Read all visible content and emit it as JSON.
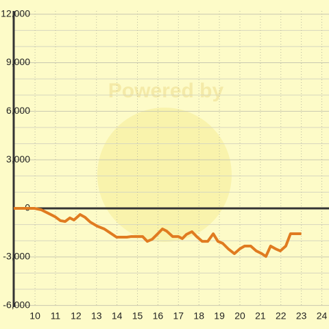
{
  "chart_data": {
    "type": "line",
    "watermark": "Powered by",
    "x": [
      8.96,
      9.97,
      10.3,
      10.64,
      10.97,
      11.24,
      11.47,
      11.7,
      11.9,
      12.2,
      12.44,
      12.7,
      13.04,
      13.38,
      13.64,
      13.98,
      14.48,
      14.7,
      15.25,
      15.48,
      15.72,
      15.99,
      16.22,
      16.42,
      16.72,
      17.0,
      17.19,
      17.39,
      17.66,
      17.89,
      18.16,
      18.43,
      18.7,
      18.93,
      19.16,
      19.43,
      19.73,
      20.0,
      20.23,
      20.53,
      20.8,
      21.07,
      21.27,
      21.5,
      21.74,
      21.97,
      22.24,
      22.47,
      23.0
    ],
    "series": [
      {
        "color": "#e07b20",
        "values": [
          0,
          0,
          -85,
          -300,
          -510,
          -760,
          -810,
          -590,
          -720,
          -380,
          -550,
          -850,
          -1100,
          -1270,
          -1490,
          -1780,
          -1780,
          -1740,
          -1740,
          -2040,
          -1910,
          -1570,
          -1270,
          -1400,
          -1740,
          -1740,
          -1870,
          -1610,
          -1440,
          -1740,
          -2040,
          -2040,
          -1570,
          -2040,
          -2160,
          -2500,
          -2800,
          -2500,
          -2330,
          -2330,
          -2630,
          -2800,
          -2970,
          -2330,
          -2500,
          -2630,
          -2330,
          -1570,
          -1570
        ]
      }
    ],
    "xlim": [
      8.96,
      24.35
    ],
    "xticks": [
      10,
      11,
      12,
      13,
      14,
      15,
      16,
      17,
      18,
      19,
      20,
      21,
      22,
      23,
      24
    ],
    "ylim": [
      -6100,
      12200
    ],
    "yticks": [
      {
        "value": -6000,
        "label": "-6,000"
      },
      {
        "value": -3000,
        "label": "-3,000"
      },
      0,
      {
        "value": 3000,
        "label": "3,000"
      },
      {
        "value": 6000,
        "label": "6,000"
      },
      {
        "value": 9000,
        "label": "9,000"
      },
      {
        "value": 12000,
        "label": "12,000"
      }
    ],
    "grid": true
  }
}
